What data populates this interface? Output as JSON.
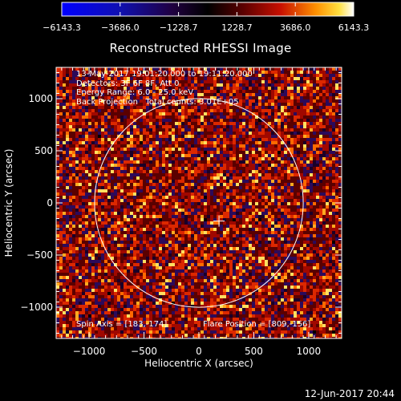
{
  "title": "Reconstructed RHESSI Image",
  "colorbar": {
    "ticks": [
      "-6143.3",
      "-3686.0",
      "-1228.7",
      "1228.7",
      "3686.0",
      "6143.3"
    ],
    "min": -6143.3,
    "max": 6143.3
  },
  "info_lines": [
    "13-May-2017 19:01:20.000 to 19:11:20.000",
    "Detectors: 3F 6F 8F, Att 0",
    "Energy Range: 6.0 - 25.0 keV",
    "Back Projection   Total counts: 3.01E+05"
  ],
  "spin_axis": "Spin Axis = [183,-174]",
  "flare_position": "Flare Position = [809,-156]",
  "axes": {
    "xlabel": "Heliocentric X (arcsec)",
    "ylabel": "Heliocentric Y (arcsec)",
    "xlim": [
      -1300,
      1300
    ],
    "ylim": [
      -1300,
      1300
    ],
    "xticks": [
      -1000,
      -500,
      0,
      500,
      1000
    ],
    "yticks": [
      -1000,
      -500,
      0,
      500,
      1000
    ],
    "xtick_labels": [
      "−1000",
      "−500",
      "0",
      "500",
      "1000"
    ],
    "ytick_labels": [
      "−1000",
      "−500",
      "0",
      "500",
      "1000"
    ]
  },
  "solar_limb_radius_arcsec": 950,
  "crosshair": {
    "x": 183,
    "y": -174
  },
  "timestamp": "12-Jun-2017 20:44"
}
